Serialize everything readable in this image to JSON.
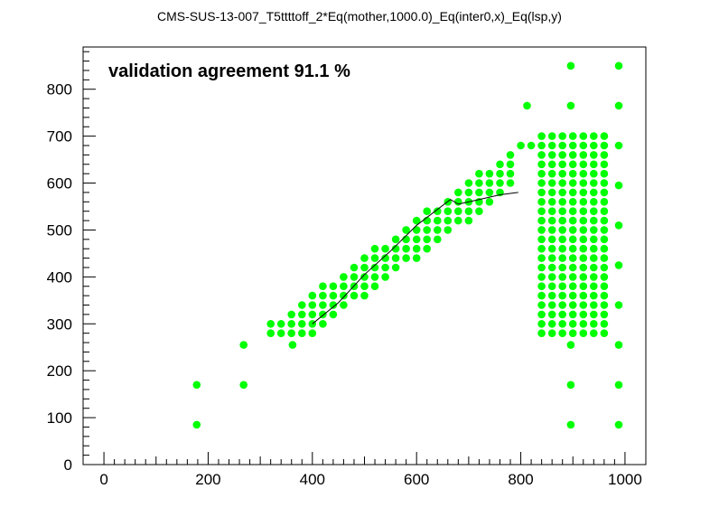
{
  "chart_data": {
    "type": "scatter",
    "title": "CMS-SUS-13-007_T5ttttoff_2*Eq(mother,1000.0)_Eq(inter0,x)_Eq(lsp,y)",
    "annotation": "validation agreement 91.1 %",
    "xlim": [
      -40,
      1040
    ],
    "ylim": [
      0,
      890
    ],
    "x_ticks": [
      0,
      200,
      400,
      600,
      800,
      1000
    ],
    "y_ticks": [
      0,
      100,
      200,
      300,
      400,
      500,
      600,
      700,
      800
    ],
    "point_color": "#00ff00",
    "line_color": "#000000",
    "grid": false,
    "points": [
      [
        178,
        85
      ],
      [
        178,
        170
      ],
      [
        268,
        170
      ],
      [
        268,
        255
      ],
      [
        896,
        85
      ],
      [
        896,
        170
      ],
      [
        896,
        255
      ],
      [
        988,
        85
      ],
      [
        988,
        170
      ],
      [
        988,
        255
      ],
      [
        988,
        340
      ],
      [
        988,
        425
      ],
      [
        988,
        510
      ],
      [
        988,
        595
      ],
      [
        988,
        680
      ],
      [
        988,
        765
      ],
      [
        988,
        850
      ],
      [
        896,
        765
      ],
      [
        896,
        850
      ],
      [
        812,
        765
      ],
      [
        362,
        255
      ]
    ],
    "band": {
      "x_start": 320,
      "x_end": 780,
      "x_step": 20,
      "row_step": 20,
      "lower_base": 280,
      "upper_base": 300,
      "slope": 0.8,
      "y_floor": 280,
      "y_cap": 700
    },
    "block": {
      "x_start": 840,
      "x_end": 960,
      "x_step": 20,
      "y_start": 280,
      "y_end": 700,
      "y_step": 20
    },
    "extra_points": [
      [
        800,
        680
      ],
      [
        820,
        680
      ]
    ],
    "exclusion_line": [
      [
        400,
        300
      ],
      [
        450,
        345
      ],
      [
        500,
        405
      ],
      [
        550,
        455
      ],
      [
        600,
        510
      ],
      [
        665,
        565
      ],
      [
        680,
        555
      ],
      [
        720,
        565
      ],
      [
        760,
        575
      ],
      [
        795,
        580
      ]
    ]
  }
}
